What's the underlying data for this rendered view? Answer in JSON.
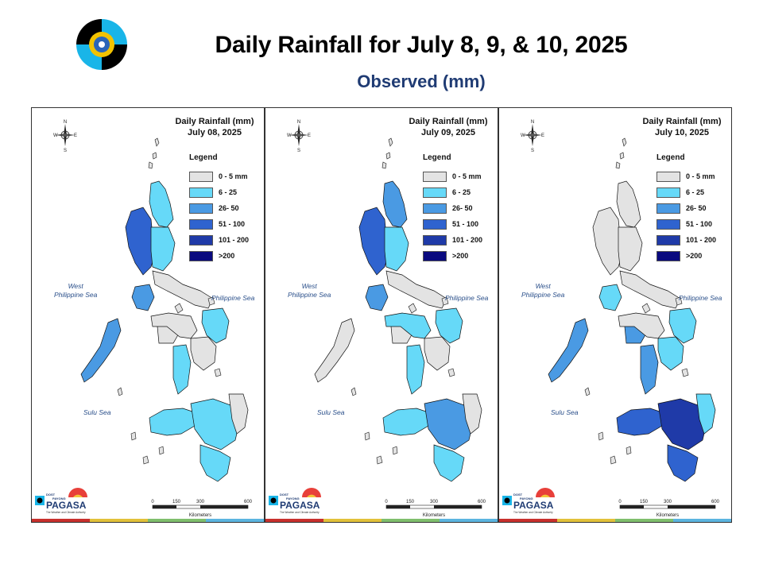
{
  "header": {
    "title": "Daily Rainfall for July 8, 9, & 10, 2025",
    "subtitle": "Observed (mm)"
  },
  "colors": {
    "c0": "#e3e3e3",
    "c1": "#66d9f8",
    "c2": "#4a9ae3",
    "c3": "#2f63cf",
    "c4": "#1f3aa8",
    "c5": "#0a0a7f",
    "stripe": [
      "#c8302c",
      "#e2c13a",
      "#7fbf6d",
      "#5cb5e0"
    ]
  },
  "legend": {
    "title": "Legend",
    "items": [
      "0 - 5 mm",
      "6 - 25",
      "26- 50",
      "51 - 100",
      "101 - 200",
      ">200"
    ]
  },
  "labels": {
    "west_sea": "West\nPhilippine Sea",
    "phil_sea": "Philippine Sea",
    "sulu_sea": "Sulu Sea",
    "km": "Kilometers",
    "scale": [
      "0",
      "150",
      "300",
      "600"
    ],
    "compass": [
      "N",
      "E",
      "S",
      "W"
    ],
    "brand_top": "DOST",
    "brand_mid": "PAYONG",
    "brand": "PAGASA",
    "brand_sub": "The Weather and Climate Authority"
  },
  "panels": [
    {
      "title": "Daily Rainfall (mm)\nJuly 08, 2025",
      "levels": {
        "luzon_n": 1,
        "luzon_w": 3,
        "luzon_c": 1,
        "luzon_se": 0,
        "mindoro": 2,
        "palawan": 2,
        "visayas_w": 0,
        "visayas_e": 0,
        "samar": 1,
        "panay": 0,
        "negros": 1,
        "mind_w": 1,
        "mind_c": 1,
        "mind_e": 0,
        "mind_s": 1
      }
    },
    {
      "title": "Daily Rainfall (mm)\nJuly 09, 2025",
      "levels": {
        "luzon_n": 2,
        "luzon_w": 3,
        "luzon_c": 1,
        "luzon_se": 0,
        "mindoro": 2,
        "palawan": 0,
        "visayas_w": 1,
        "visayas_e": 0,
        "samar": 1,
        "panay": 0,
        "negros": 1,
        "mind_w": 1,
        "mind_c": 2,
        "mind_e": 0,
        "mind_s": 1
      }
    },
    {
      "title": "Daily Rainfall (mm)\nJuly 10, 2025",
      "levels": {
        "luzon_n": 0,
        "luzon_w": 0,
        "luzon_c": 0,
        "luzon_se": 0,
        "mindoro": 1,
        "palawan": 2,
        "visayas_w": 0,
        "visayas_e": 1,
        "samar": 1,
        "panay": 2,
        "negros": 2,
        "mind_w": 3,
        "mind_c": 4,
        "mind_e": 1,
        "mind_s": 3
      }
    }
  ]
}
